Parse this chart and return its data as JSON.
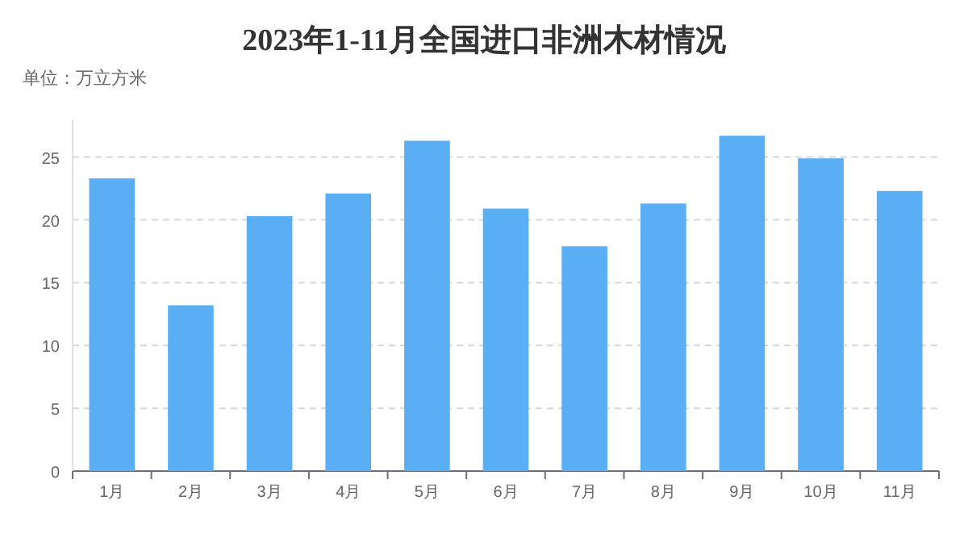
{
  "chart_data": {
    "type": "bar",
    "title": "2023年1-11月全国进口非洲木材情况",
    "subtitle": "单位：万立方米",
    "categories": [
      "1月",
      "2月",
      "3月",
      "4月",
      "5月",
      "6月",
      "7月",
      "8月",
      "9月",
      "10月",
      "11月"
    ],
    "values": [
      23.3,
      13.2,
      20.3,
      22.1,
      26.3,
      20.9,
      17.9,
      21.3,
      26.7,
      24.9,
      22.3
    ],
    "color": "#5aaef3",
    "ylim": [
      0,
      28
    ],
    "yticks": [
      0,
      5,
      10,
      15,
      20,
      25
    ],
    "grid": "y"
  }
}
